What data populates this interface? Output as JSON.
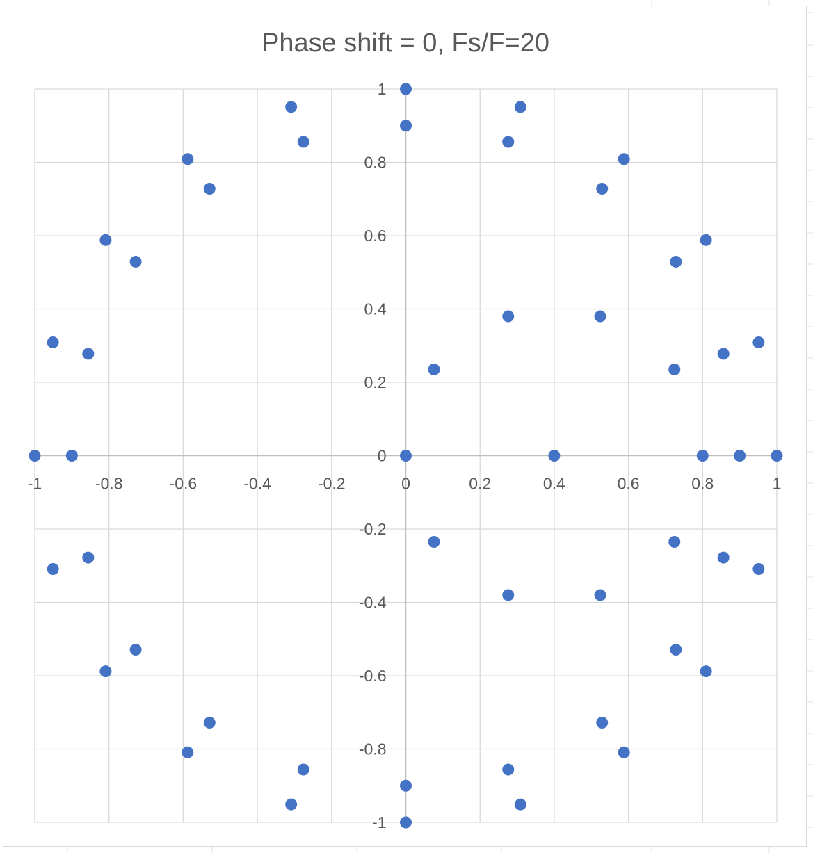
{
  "chart_data": {
    "type": "scatter",
    "title": "Phase shift = 0, Fs/F=20",
    "xlabel": "",
    "ylabel": "",
    "xlim": [
      -1,
      1
    ],
    "ylim": [
      -1,
      1
    ],
    "x_ticks": [
      -1,
      -0.8,
      -0.6,
      -0.4,
      -0.2,
      0,
      0.2,
      0.4,
      0.6,
      0.8,
      1
    ],
    "y_ticks": [
      -1,
      -0.8,
      -0.6,
      -0.4,
      -0.2,
      0,
      0.2,
      0.4,
      0.6,
      0.8,
      1
    ],
    "x_tick_labels": [
      "-1",
      "-0.8",
      "-0.6",
      "-0.4",
      "-0.2",
      "0",
      "0.2",
      "0.4",
      "0.6",
      "0.8",
      "1"
    ],
    "y_tick_labels": [
      "-1",
      "-0.8",
      "-0.6",
      "-0.4",
      "-0.2",
      "0",
      "0.2",
      "0.4",
      "0.6",
      "0.8",
      "1"
    ],
    "grid": true,
    "legend": "none",
    "marker_color": "#4472C4",
    "gridline_color": "#d9d9d9",
    "series": [
      {
        "points": [
          [
            0,
            1
          ],
          [
            0,
            0.9
          ],
          [
            0.309,
            0.951
          ],
          [
            0.276,
            0.856
          ],
          [
            0.588,
            0.809
          ],
          [
            0.529,
            0.728
          ],
          [
            0.809,
            0.588
          ],
          [
            0.728,
            0.529
          ],
          [
            0.951,
            0.309
          ],
          [
            0.856,
            0.278
          ],
          [
            1,
            0
          ],
          [
            0.9,
            0
          ],
          [
            0.8,
            0
          ],
          [
            0.4,
            0
          ],
          [
            0,
            0
          ],
          [
            0.076,
            0.235
          ],
          [
            0.276,
            0.38
          ],
          [
            0.524,
            0.38
          ],
          [
            0.724,
            0.235
          ],
          [
            0.076,
            -0.235
          ],
          [
            0.276,
            -0.38
          ],
          [
            0.524,
            -0.38
          ],
          [
            0.724,
            -0.235
          ],
          [
            0.951,
            -0.309
          ],
          [
            0.856,
            -0.278
          ],
          [
            0.809,
            -0.588
          ],
          [
            0.728,
            -0.529
          ],
          [
            0.588,
            -0.809
          ],
          [
            0.529,
            -0.728
          ],
          [
            0.309,
            -0.951
          ],
          [
            0.276,
            -0.856
          ],
          [
            0,
            -1
          ],
          [
            0,
            -0.9
          ],
          [
            -0.309,
            0.951
          ],
          [
            -0.276,
            0.856
          ],
          [
            -0.588,
            0.809
          ],
          [
            -0.529,
            0.728
          ],
          [
            -0.809,
            0.588
          ],
          [
            -0.728,
            0.529
          ],
          [
            -0.951,
            0.309
          ],
          [
            -0.856,
            0.278
          ],
          [
            -1,
            0
          ],
          [
            -0.9,
            0
          ],
          [
            -0.951,
            -0.309
          ],
          [
            -0.856,
            -0.278
          ],
          [
            -0.809,
            -0.588
          ],
          [
            -0.728,
            -0.529
          ],
          [
            -0.588,
            -0.809
          ],
          [
            -0.529,
            -0.728
          ],
          [
            -0.309,
            -0.951
          ],
          [
            -0.276,
            -0.856
          ]
        ]
      }
    ]
  }
}
